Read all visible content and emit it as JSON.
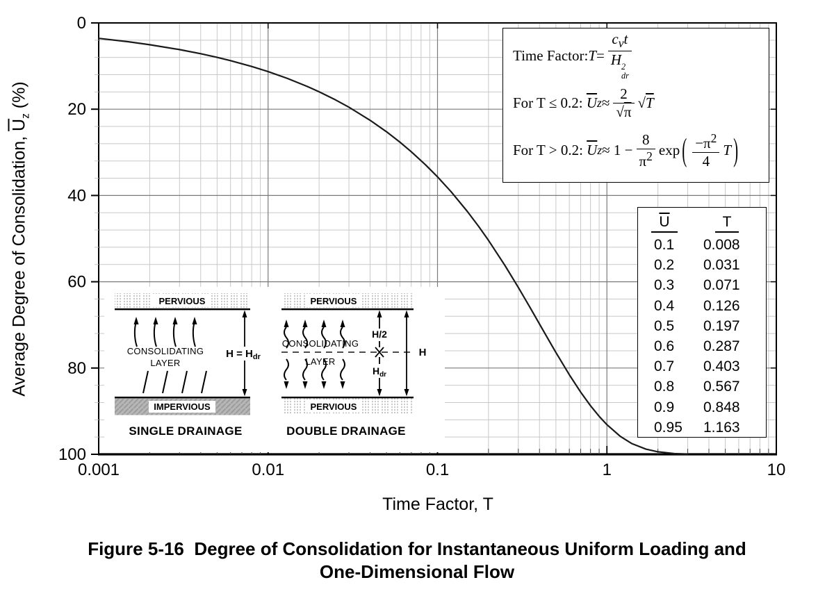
{
  "figure_caption": {
    "line1": "Figure 5-16  Degree of Consolidation for Instantaneous Uniform Loading and",
    "line2": "One-Dimensional Flow"
  },
  "chart_data": {
    "type": "line",
    "title": "Degree of Consolidation for Instantaneous Uniform Loading and One-Dimensional Flow",
    "x_axis": {
      "label": "Time Factor, T",
      "scale": "log",
      "min": 0.001,
      "max": 10,
      "ticks": [
        0.001,
        0.01,
        0.1,
        1,
        10
      ],
      "tick_labels": [
        "0.001",
        "0.01",
        "0.1",
        "1",
        "10"
      ]
    },
    "y_axis": {
      "label_text": "Average Degree of Consolidation, Uz (%)",
      "label_html": "Average Degree of Consolidation, <span class='olu'>U</span><sub>z</sub> (%)",
      "min": 0,
      "max": 100,
      "inverted": true,
      "major_ticks": [
        0,
        20,
        40,
        60,
        80,
        100
      ],
      "tick_labels": [
        "0",
        "20",
        "40",
        "60",
        "80",
        "100"
      ],
      "minor_step": 4
    },
    "grid": true,
    "legend": "none",
    "series": [
      {
        "name": "Average degree of consolidation curve",
        "points": [
          [
            0.001,
            3.57
          ],
          [
            0.0015,
            4.37
          ],
          [
            0.002,
            5.05
          ],
          [
            0.003,
            6.18
          ],
          [
            0.004,
            7.14
          ],
          [
            0.005,
            7.98
          ],
          [
            0.006,
            8.74
          ],
          [
            0.008,
            10.09
          ],
          [
            0.01,
            11.28
          ],
          [
            0.013,
            12.86
          ],
          [
            0.017,
            14.71
          ],
          [
            0.02,
            15.96
          ],
          [
            0.025,
            17.84
          ],
          [
            0.03,
            19.54
          ],
          [
            0.04,
            22.57
          ],
          [
            0.05,
            25.23
          ],
          [
            0.06,
            27.64
          ],
          [
            0.07,
            29.86
          ],
          [
            0.085,
            32.9
          ],
          [
            0.1,
            35.68
          ],
          [
            0.12,
            39.08
          ],
          [
            0.15,
            43.7
          ],
          [
            0.175,
            47.18
          ],
          [
            0.2,
            50.41
          ],
          [
            0.25,
            56.22
          ],
          [
            0.3,
            61.32
          ],
          [
            0.35,
            65.82
          ],
          [
            0.4,
            69.79
          ],
          [
            0.45,
            73.3
          ],
          [
            0.5,
            76.4
          ],
          [
            0.6,
            81.56
          ],
          [
            0.7,
            85.59
          ],
          [
            0.8,
            88.74
          ],
          [
            0.9,
            91.2
          ],
          [
            1.0,
            93.13
          ],
          [
            1.2,
            95.85
          ],
          [
            1.4,
            97.5
          ],
          [
            1.7,
            98.8
          ],
          [
            2.0,
            99.42
          ],
          [
            2.5,
            99.83
          ],
          [
            3.0,
            99.95
          ]
        ]
      }
    ],
    "ut_table": {
      "headers": [
        {
          "text": "U",
          "overline": true
        },
        {
          "text": "T",
          "overline": false
        }
      ],
      "rows": [
        [
          "0.1",
          "0.008"
        ],
        [
          "0.2",
          "0.031"
        ],
        [
          "0.3",
          "0.071"
        ],
        [
          "0.4",
          "0.126"
        ],
        [
          "0.5",
          "0.197"
        ],
        [
          "0.6",
          "0.287"
        ],
        [
          "0.7",
          "0.403"
        ],
        [
          "0.8",
          "0.567"
        ],
        [
          "0.9",
          "0.848"
        ],
        [
          "0.95",
          "1.163"
        ]
      ]
    }
  },
  "formula_box": {
    "line1_html": "Time Factor: <i>T</i> = <span class='frac'><span class='num'><i>c</i><sub><i>v</i></sub><i>t</i></span><span class='den'><i>H</i><span class='ss'><span>2</span><span>dr</span></span></span></span>",
    "line2_html": "For T ≤ 0.2:&nbsp; <span class='olu'><i>U</i></span><sub><i>z</i></sub> ≈ <span class='frac'><span class='num'>2</span><span class='den'>√<span class='olu'>π</span></span></span> √<span class='olu'><i>T</i></span>",
    "line3_html": "For T &gt; 0.2:&nbsp; <span class='olu'><i>U</i></span><sub><i>z</i></sub> ≈ 1 − <span class='frac'><span class='num'>8</span><span class='den'>π<sup>2</sup></span></span> exp<span class='bigp'>(</span><span class='frac'><span class='num'>−π<sup>2</sup></span><span class='den'>4</span></span><i>T</i><span class='bigp'>)</span>"
  },
  "diagrams": {
    "single": {
      "top_label": "PERVIOUS",
      "layer_label_1": "CONSOLIDATING",
      "layer_label_2": "LAYER",
      "bottom_label": "IMPERVIOUS",
      "height_label_main": "H = H",
      "height_label_sub": "dr",
      "caption": "SINGLE DRAINAGE"
    },
    "double": {
      "top_label": "PERVIOUS",
      "bottom_label": "PERVIOUS",
      "layer_label_1": "CONSOLIDATING",
      "layer_label_2": "LAYER",
      "half_height_label": "H/2",
      "drain_height_main": "H",
      "drain_height_sub": "dr",
      "full_height_label": "H",
      "caption": "DOUBLE DRAINAGE"
    }
  },
  "colors": {
    "curve": "#1a1a1a",
    "grid_minor": "#c8c8c8",
    "grid_major": "#7a7a7a",
    "border": "#000000",
    "tick": "#000000",
    "band_stipple": "#c9c9c9",
    "impervious_fill": "#b6b6b6"
  }
}
